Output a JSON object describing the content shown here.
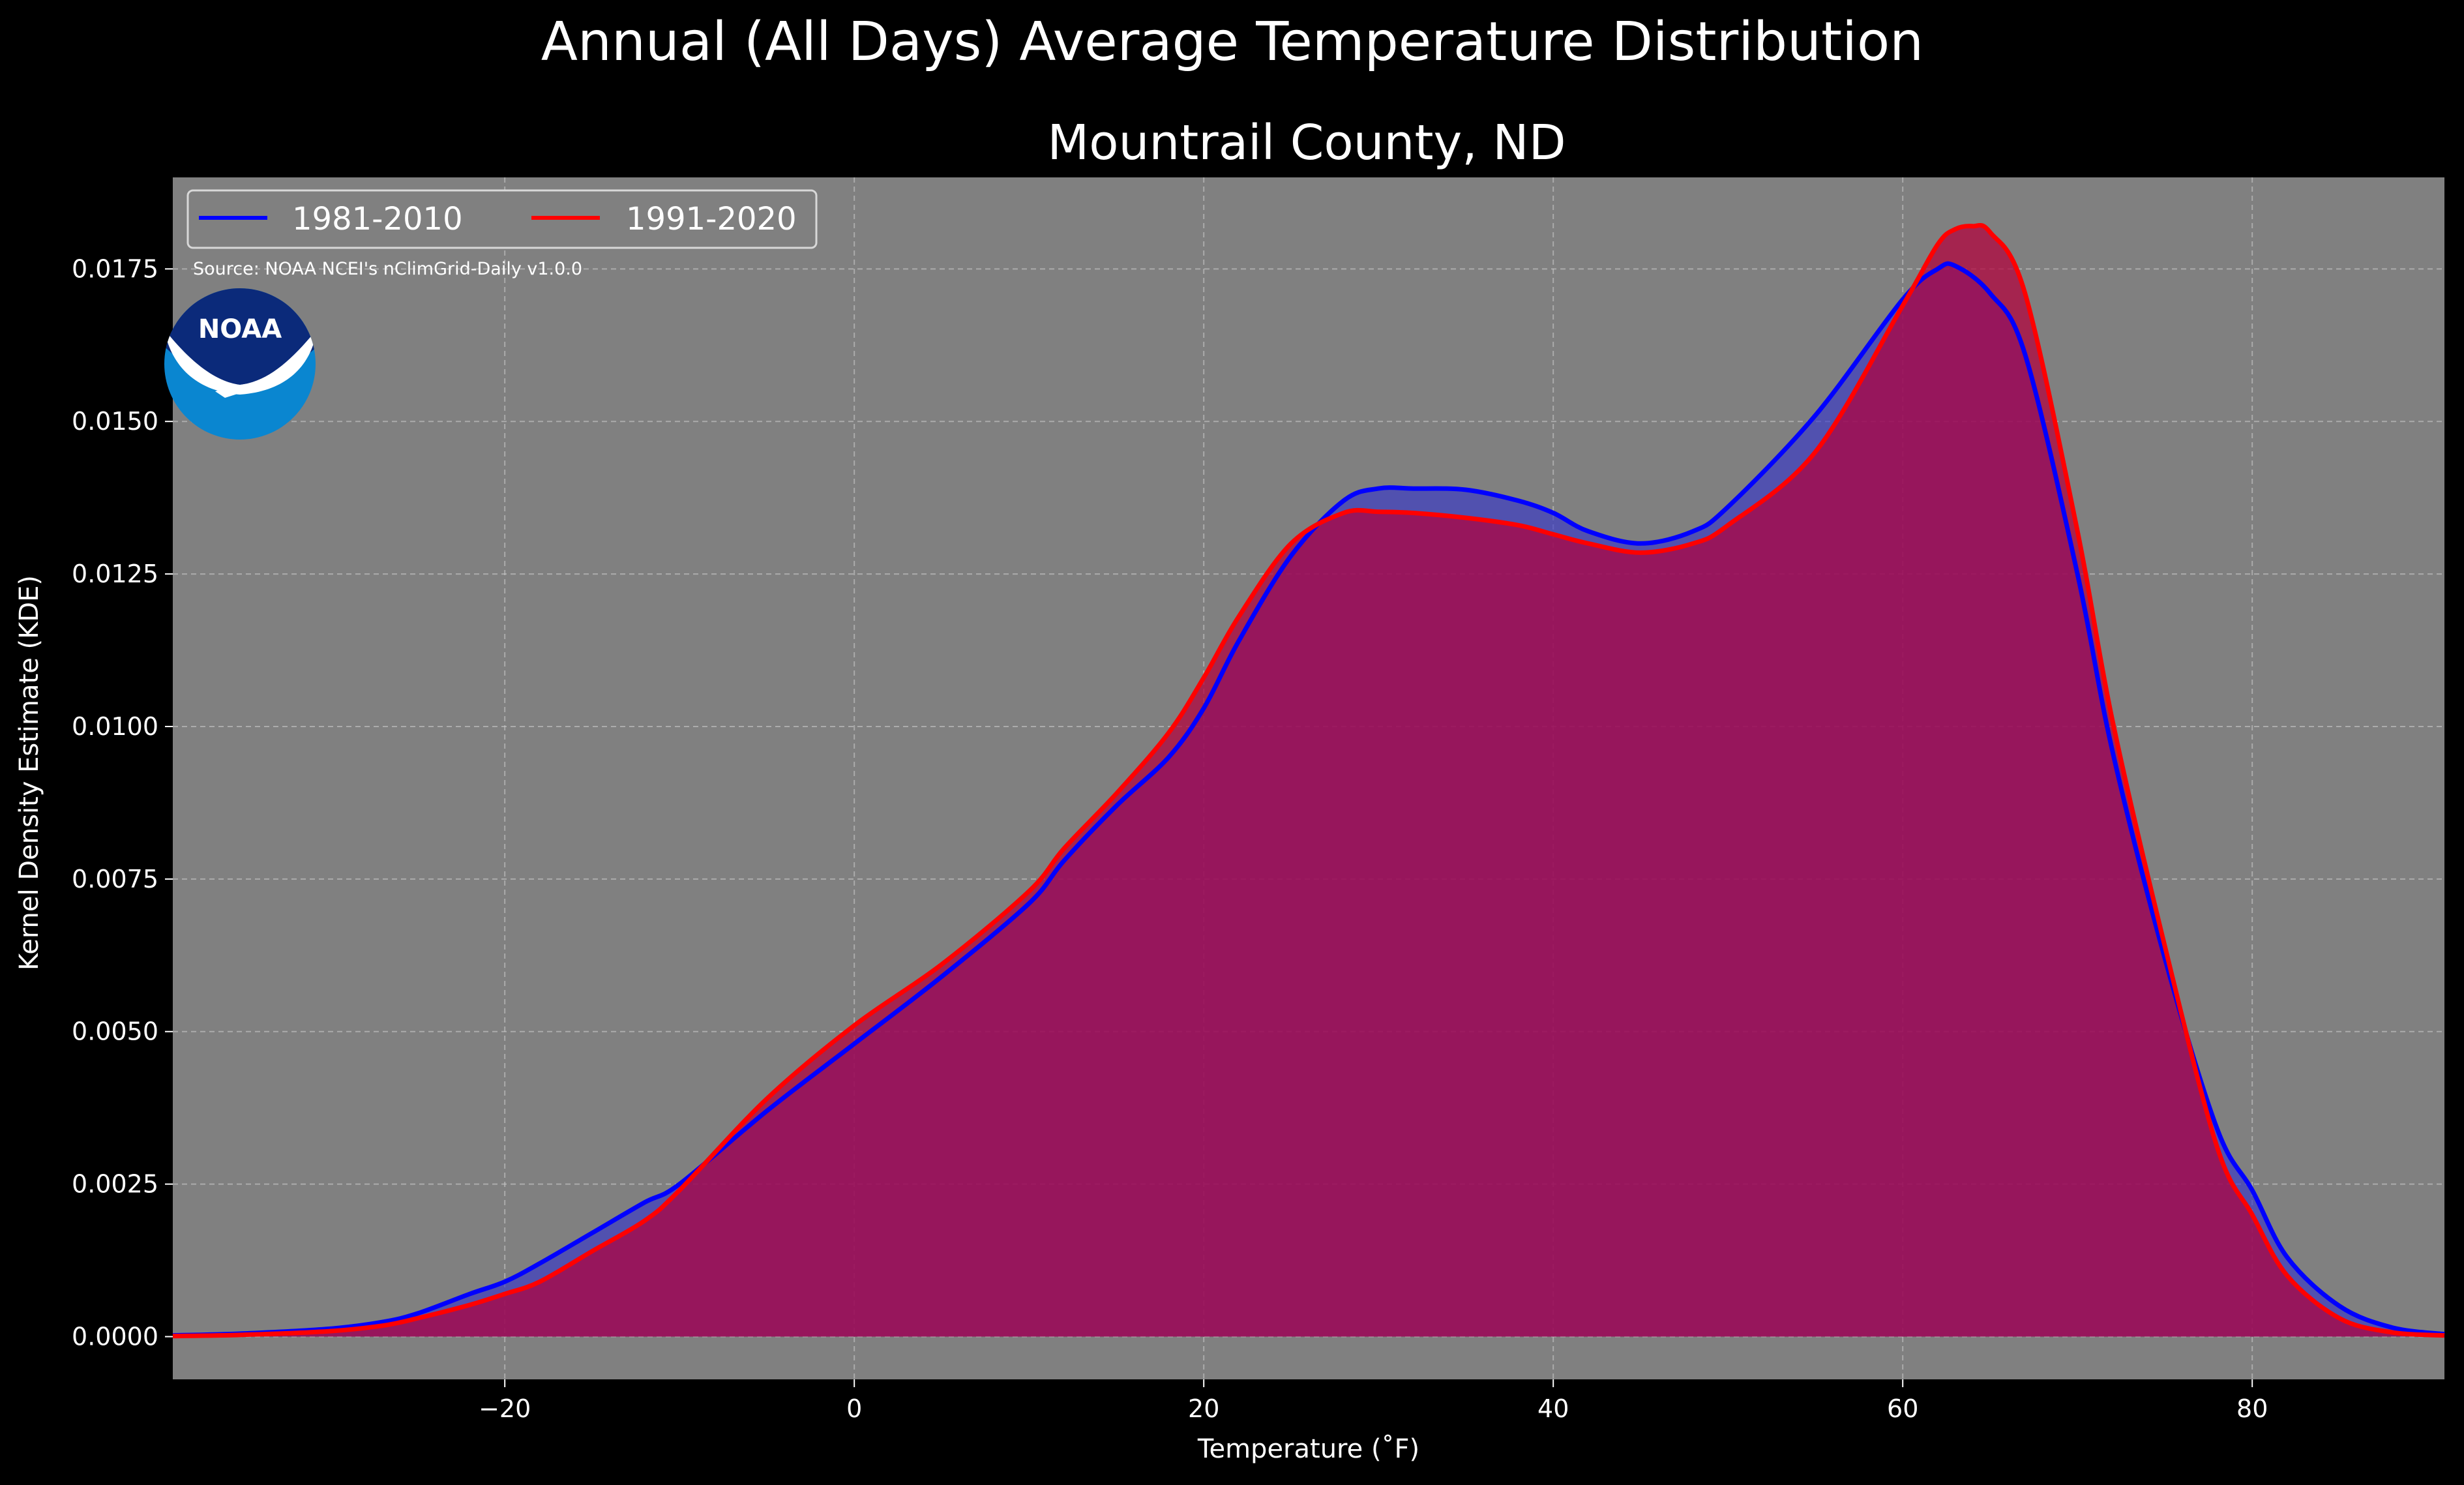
{
  "chart_data": {
    "type": "area",
    "suptitle": "Annual (All Days) Average Temperature Distribution",
    "title": "Mountrail County, ND",
    "xlabel": "Temperature (˚F)",
    "ylabel": "Kernel Density Estimate (KDE)",
    "source": "Source: NOAA NCEI's nClimGrid-Daily v1.0.0",
    "logo_text": "NOAA",
    "xlim": [
      -39,
      91
    ],
    "ylim": [
      -0.0007,
      0.019
    ],
    "xticks": [
      -20,
      0,
      20,
      40,
      60,
      80
    ],
    "xtick_labels": [
      "−20",
      "0",
      "20",
      "40",
      "60",
      "80"
    ],
    "yticks": [
      0,
      0.0025,
      0.005,
      0.0075,
      0.01,
      0.0125,
      0.015,
      0.0175
    ],
    "ytick_labels": [
      "0.0000",
      "0.0025",
      "0.0050",
      "0.0075",
      "0.0100",
      "0.0125",
      "0.0150",
      "0.0175"
    ],
    "grid": true,
    "legend_position": "top-left",
    "background": "#808080",
    "series": [
      {
        "name": "1981-2010",
        "color": "#0000ff",
        "fill": "#3333cc",
        "x": [
          -39,
          -35,
          -30,
          -27,
          -25,
          -22,
          -20,
          -18,
          -15,
          -12,
          -10,
          -5,
          0,
          5,
          10,
          12,
          15,
          18,
          20,
          22,
          25,
          28,
          30,
          32,
          35,
          38,
          40,
          42,
          45,
          48,
          50,
          55,
          60,
          62,
          63,
          65,
          67,
          70,
          72,
          75,
          78,
          80,
          82,
          85,
          88,
          91
        ],
        "y": [
          2e-05,
          5e-05,
          0.00013,
          0.00024,
          0.00038,
          0.0007,
          0.0009,
          0.0012,
          0.0017,
          0.0022,
          0.0025,
          0.0037,
          0.0048,
          0.0059,
          0.0071,
          0.0078,
          0.0087,
          0.0095,
          0.0103,
          0.0114,
          0.0128,
          0.0137,
          0.0139,
          0.0139,
          0.01388,
          0.0137,
          0.0135,
          0.0132,
          0.013,
          0.0132,
          0.0136,
          0.0151,
          0.017,
          0.0175,
          0.01755,
          0.0171,
          0.0161,
          0.0125,
          0.0096,
          0.0062,
          0.0034,
          0.0024,
          0.0013,
          0.0005,
          0.00015,
          4e-05
        ]
      },
      {
        "name": "1991-2020",
        "color": "#ff0000",
        "fill": "#b3003b",
        "x": [
          -39,
          -35,
          -30,
          -27,
          -25,
          -22,
          -20,
          -18,
          -15,
          -12,
          -10,
          -5,
          0,
          5,
          10,
          12,
          15,
          18,
          20,
          22,
          25,
          28,
          30,
          32,
          35,
          38,
          40,
          42,
          45,
          48,
          50,
          55,
          60,
          62,
          63,
          64,
          65,
          67,
          70,
          72,
          75,
          78,
          80,
          82,
          85,
          88,
          91
        ],
        "y": [
          1e-05,
          3e-05,
          9e-05,
          0.00018,
          0.0003,
          0.00052,
          0.0007,
          0.0009,
          0.0014,
          0.0019,
          0.0024,
          0.0039,
          0.0051,
          0.0061,
          0.0073,
          0.008,
          0.0089,
          0.0099,
          0.0108,
          0.0118,
          0.013,
          0.0135,
          0.01352,
          0.0135,
          0.01342,
          0.0133,
          0.01315,
          0.013,
          0.01285,
          0.013,
          0.0133,
          0.0145,
          0.0169,
          0.0179,
          0.01815,
          0.0182,
          0.0181,
          0.0171,
          0.0132,
          0.0101,
          0.0064,
          0.0031,
          0.002,
          0.001,
          0.0003,
          7e-05,
          2e-05
        ]
      }
    ]
  }
}
